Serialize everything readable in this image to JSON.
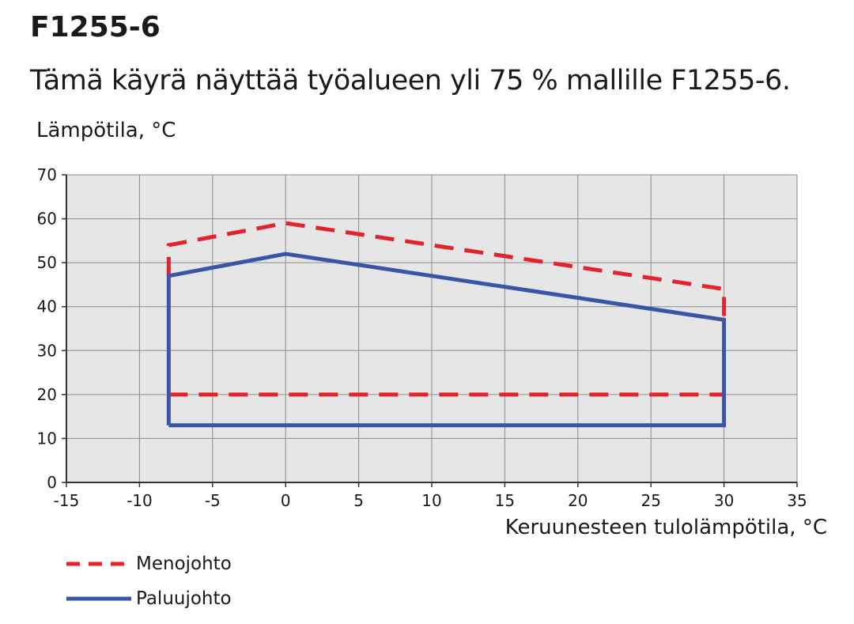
{
  "title": "F1255-6",
  "subtitle": "Tämä käyrä näyttää työalueen yli 75 % mallille F1255-6.",
  "colors": {
    "menojohto": "#e3232b",
    "paluujohto": "#3a55a4",
    "plot_bg": "#e6e6e6",
    "grid": "#8c8c8c"
  },
  "chart_data": {
    "type": "line",
    "ylabel": "Lämpötila, °C",
    "xlabel": "Keruunesteen tulolämpötila, °C",
    "xlim": [
      -15,
      35
    ],
    "ylim": [
      0,
      70
    ],
    "x_ticks": [
      "-15",
      "-10",
      "-5",
      "0",
      "5",
      "10",
      "15",
      "20",
      "25",
      "30",
      "35"
    ],
    "y_ticks": [
      "0",
      "10",
      "20",
      "30",
      "40",
      "50",
      "60",
      "70"
    ],
    "grid": true,
    "legend_position": "bottom-left",
    "series": [
      {
        "name": "Menojohto",
        "style": "dashed",
        "color": "#e3232b",
        "points": [
          [
            -8,
            47
          ],
          [
            -8,
            54
          ],
          [
            0,
            59
          ],
          [
            30,
            44
          ],
          [
            30,
            37
          ]
        ],
        "lower_bound": [
          [
            -8,
            20
          ],
          [
            30,
            20
          ]
        ]
      },
      {
        "name": "Paluujohto",
        "style": "solid",
        "color": "#3a55a4",
        "points": [
          [
            -8,
            13
          ],
          [
            -8,
            47
          ],
          [
            0,
            52
          ],
          [
            30,
            37
          ],
          [
            30,
            13
          ],
          [
            -8,
            13
          ]
        ]
      }
    ]
  }
}
